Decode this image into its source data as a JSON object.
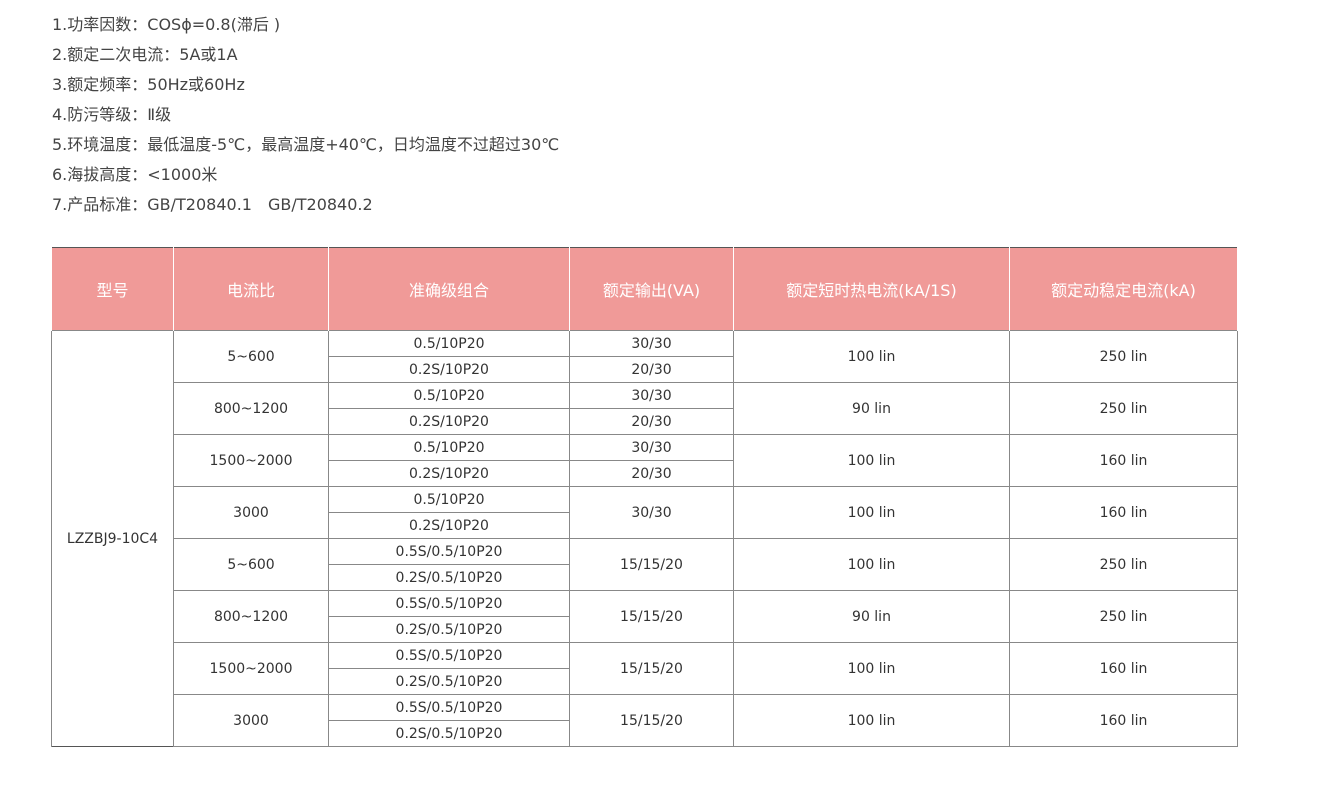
{
  "specs": [
    "1.功率因数：COSϕ=0.8(滞后 )",
    "2.额定二次电流：5A或1A",
    "3.额定频率：50Hz或60Hz",
    "4.防污等级：Ⅱ级",
    "5.环境温度：最低温度-5℃，最高温度+40℃，日均温度不过超过30℃",
    "6.海拔高度：<1000米",
    "7.产品标准：GB/T20840.1　GB/T20840.2"
  ],
  "table": {
    "headers": [
      "型号",
      "电流比",
      "准确级组合",
      "额定输出(VA)",
      "额定短时热电流(kA/1S)",
      "额定动稳定电流(kA)"
    ],
    "header_color": "#f09a98",
    "model": "LZZBJ9-10C4",
    "groups": [
      {
        "ratio": "5~600",
        "combos": [
          "0.5/10P20",
          "0.2S/10P20"
        ],
        "outputs": [
          "30/30",
          "20/30"
        ],
        "thermal": "100 lin",
        "dynamic": "250 lin"
      },
      {
        "ratio": "800~1200",
        "combos": [
          "0.5/10P20",
          "0.2S/10P20"
        ],
        "outputs": [
          "30/30",
          "20/30"
        ],
        "thermal": "90 lin",
        "dynamic": "250 lin"
      },
      {
        "ratio": "1500~2000",
        "combos": [
          "0.5/10P20",
          "0.2S/10P20"
        ],
        "outputs": [
          "30/30",
          "20/30"
        ],
        "thermal": "100 lin",
        "dynamic": "160 lin"
      },
      {
        "ratio": "3000",
        "combos": [
          "0.5/10P20",
          "0.2S/10P20"
        ],
        "outputs": [
          "30/30"
        ],
        "thermal": "100 lin",
        "dynamic": "160 lin"
      },
      {
        "ratio": "5~600",
        "combos": [
          "0.5S/0.5/10P20",
          "0.2S/0.5/10P20"
        ],
        "outputs": [
          "15/15/20"
        ],
        "thermal": "100 lin",
        "dynamic": "250 lin"
      },
      {
        "ratio": "800~1200",
        "combos": [
          "0.5S/0.5/10P20",
          "0.2S/0.5/10P20"
        ],
        "outputs": [
          "15/15/20"
        ],
        "thermal": "90 lin",
        "dynamic": "250 lin"
      },
      {
        "ratio": "1500~2000",
        "combos": [
          "0.5S/0.5/10P20",
          "0.2S/0.5/10P20"
        ],
        "outputs": [
          "15/15/20"
        ],
        "thermal": "100 lin",
        "dynamic": "160 lin"
      },
      {
        "ratio": "3000",
        "combos": [
          "0.5S/0.5/10P20",
          "0.2S/0.5/10P20"
        ],
        "outputs": [
          "15/15/20"
        ],
        "thermal": "100 lin",
        "dynamic": "160 lin"
      }
    ]
  }
}
